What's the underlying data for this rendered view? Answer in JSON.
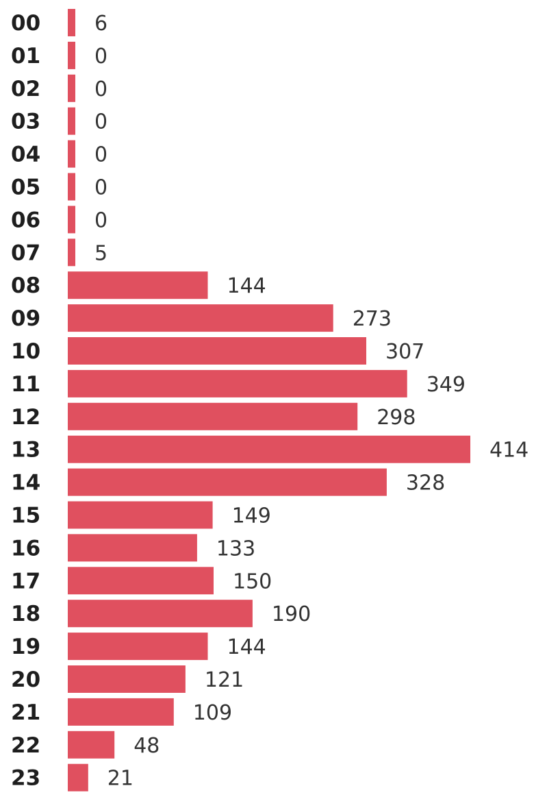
{
  "chart_data": {
    "type": "bar",
    "orientation": "horizontal",
    "categories": [
      "00",
      "01",
      "02",
      "03",
      "04",
      "05",
      "06",
      "07",
      "08",
      "09",
      "10",
      "11",
      "12",
      "13",
      "14",
      "15",
      "16",
      "17",
      "18",
      "19",
      "20",
      "21",
      "22",
      "23"
    ],
    "values": [
      6,
      0,
      0,
      0,
      0,
      0,
      0,
      5,
      144,
      273,
      307,
      349,
      298,
      414,
      328,
      149,
      133,
      150,
      190,
      144,
      121,
      109,
      48,
      21
    ],
    "value_labels": [
      "6",
      "0",
      "0",
      "0",
      "0",
      "0",
      "0",
      "5",
      "144",
      "273",
      "307",
      "349",
      "298",
      "414",
      "328",
      "149",
      "133",
      "150",
      "190",
      "144",
      "121",
      "109",
      "48",
      "21"
    ],
    "xlim": [
      0,
      414
    ],
    "grid": false,
    "legend": "none",
    "bar_color": "#e0505f"
  }
}
